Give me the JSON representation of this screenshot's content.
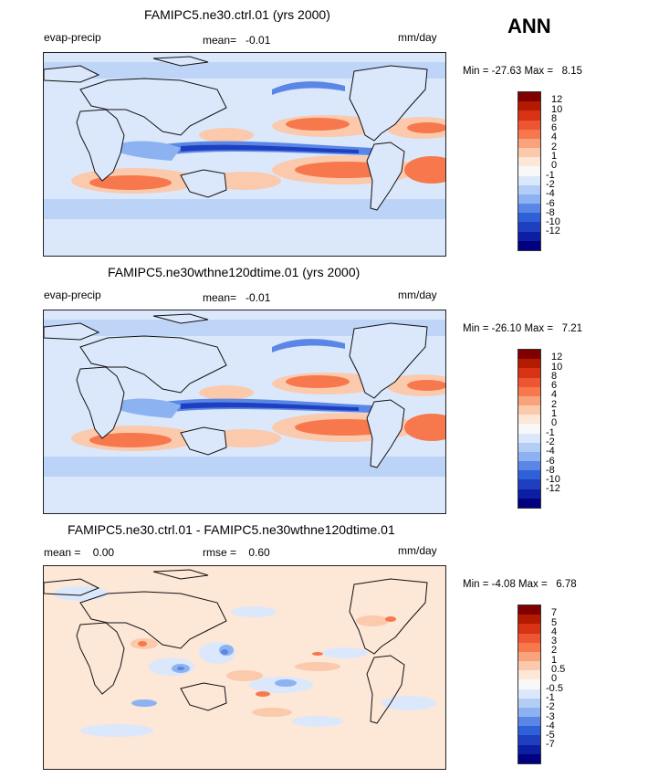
{
  "season": "ANN",
  "panels": [
    {
      "title": "FAMIPC5.ne30.ctrl.01 (yrs 2000)",
      "left_label": "evap-precip",
      "mid_label": "mean=   -0.01",
      "units": "mm/day",
      "minmax": "Min = -27.63 Max =   8.15",
      "colorbar": {
        "colors": [
          "#800000",
          "#b31a00",
          "#d83214",
          "#ee5533",
          "#f7784d",
          "#f9a37d",
          "#fbc9ac",
          "#fde7d7",
          "#f8f8f8",
          "#dbe8fb",
          "#b3cdf6",
          "#8db2f1",
          "#5a87e5",
          "#2e60d8",
          "#1e3fbf",
          "#0c1ea1",
          "#000080"
        ],
        "labels": [
          "12",
          "10",
          "8",
          "6",
          "4",
          "2",
          "1",
          "0",
          "-1",
          "-2",
          "-4",
          "-6",
          "-8",
          "-10",
          "-12"
        ]
      }
    },
    {
      "title": "FAMIPC5.ne30wthne120dtime.01 (yrs 2000)",
      "left_label": "evap-precip",
      "mid_label": "mean=   -0.01",
      "units": "mm/day",
      "minmax": "Min = -26.10 Max =   7.21",
      "colorbar": {
        "colors": [
          "#800000",
          "#b31a00",
          "#d83214",
          "#ee5533",
          "#f7784d",
          "#f9a37d",
          "#fbc9ac",
          "#fde7d7",
          "#f8f8f8",
          "#dbe8fb",
          "#b3cdf6",
          "#8db2f1",
          "#5a87e5",
          "#2e60d8",
          "#1e3fbf",
          "#0c1ea1",
          "#000080"
        ],
        "labels": [
          "12",
          "10",
          "8",
          "6",
          "4",
          "2",
          "1",
          "0",
          "-1",
          "-2",
          "-4",
          "-6",
          "-8",
          "-10",
          "-12"
        ]
      }
    },
    {
      "title": "FAMIPC5.ne30.ctrl.01 - FAMIPC5.ne30wthne120dtime.01",
      "left_label": "mean =    0.00",
      "mid_label": "rmse =    0.60",
      "units": "mm/day",
      "minmax": "Min = -4.08 Max =   6.78",
      "colorbar": {
        "colors": [
          "#800000",
          "#b31a00",
          "#d83214",
          "#ee5533",
          "#f7784d",
          "#f9a37d",
          "#fbc9ac",
          "#fde7d7",
          "#f8f8f8",
          "#dbe8fb",
          "#b3cdf6",
          "#8db2f1",
          "#5a87e5",
          "#2e60d8",
          "#1e3fbf",
          "#0c1ea1",
          "#000080"
        ],
        "labels": [
          "7",
          "5",
          "4",
          "3",
          "2",
          "1",
          "0.5",
          "0",
          "-0.5",
          "-1",
          "-2",
          "-3",
          "-4",
          "-5",
          "-7"
        ]
      }
    }
  ]
}
